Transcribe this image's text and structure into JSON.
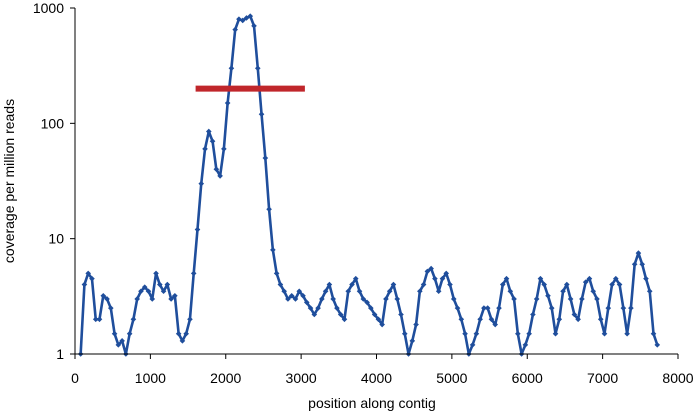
{
  "chart_data": {
    "type": "line",
    "title": "",
    "xlabel": "position along contig",
    "ylabel": "coverage per million reads",
    "xlim": [
      0,
      8000
    ],
    "ylim": [
      1,
      1000
    ],
    "y_scale": "log",
    "x_ticks": [
      "0",
      "1000",
      "2000",
      "3000",
      "4000",
      "5000",
      "6000",
      "7000",
      "8000"
    ],
    "y_ticks": [
      "1",
      "10",
      "100",
      "1000"
    ],
    "grid": false,
    "legend": "none",
    "series": [
      {
        "color": "#1f4e9c",
        "marker": "diamond",
        "x": [
          75,
          125,
          175,
          225,
          275,
          325,
          375,
          425,
          475,
          525,
          575,
          625,
          675,
          725,
          775,
          825,
          875,
          925,
          975,
          1025,
          1075,
          1125,
          1175,
          1225,
          1275,
          1325,
          1375,
          1425,
          1475,
          1525,
          1575,
          1625,
          1675,
          1725,
          1775,
          1825,
          1875,
          1925,
          1975,
          2025,
          2075,
          2125,
          2175,
          2225,
          2275,
          2325,
          2375,
          2425,
          2475,
          2525,
          2575,
          2625,
          2675,
          2725,
          2775,
          2825,
          2875,
          2925,
          2975,
          3025,
          3075,
          3125,
          3175,
          3225,
          3275,
          3325,
          3375,
          3425,
          3475,
          3525,
          3575,
          3625,
          3675,
          3725,
          3775,
          3825,
          3875,
          3925,
          3975,
          4025,
          4075,
          4125,
          4175,
          4225,
          4275,
          4325,
          4375,
          4425,
          4475,
          4525,
          4575,
          4625,
          4675,
          4725,
          4775,
          4825,
          4875,
          4925,
          4975,
          5025,
          5075,
          5125,
          5175,
          5225,
          5275,
          5325,
          5375,
          5425,
          5475,
          5525,
          5575,
          5625,
          5675,
          5725,
          5775,
          5825,
          5875,
          5925,
          5975,
          6025,
          6075,
          6125,
          6175,
          6225,
          6275,
          6325,
          6375,
          6425,
          6475,
          6525,
          6575,
          6625,
          6675,
          6725,
          6775,
          6825,
          6875,
          6925,
          6975,
          7025,
          7075,
          7125,
          7175,
          7225,
          7275,
          7325,
          7375,
          7425,
          7475,
          7525,
          7575,
          7625,
          7675,
          7725
        ],
        "y": [
          1,
          4,
          5,
          4.5,
          2,
          2,
          3.2,
          3,
          2.5,
          1.5,
          1.2,
          1.3,
          1,
          1.5,
          2,
          3,
          3.5,
          3.8,
          3.5,
          3,
          5,
          4,
          3.5,
          4,
          3,
          3.2,
          1.5,
          1.3,
          1.5,
          2,
          5,
          12,
          30,
          60,
          85,
          70,
          40,
          35,
          60,
          150,
          300,
          650,
          800,
          780,
          820,
          850,
          700,
          300,
          120,
          50,
          18,
          8,
          5,
          4,
          3.5,
          3,
          3.2,
          3,
          3.5,
          3.2,
          2.8,
          2.5,
          2.2,
          2.5,
          3,
          3.5,
          4,
          3,
          2.5,
          2.2,
          2,
          3.5,
          4,
          4.5,
          3.5,
          3,
          2.8,
          2.5,
          2.2,
          2,
          1.8,
          3,
          3.5,
          4,
          3,
          2.2,
          1.5,
          1,
          1.3,
          1.8,
          3.5,
          4,
          5.2,
          5.5,
          4.5,
          3.5,
          4.5,
          5,
          4,
          3,
          2.5,
          2,
          1.5,
          1,
          1.2,
          1.5,
          2,
          2.5,
          2.5,
          2,
          1.8,
          2.5,
          4,
          4.5,
          3.5,
          3,
          1.5,
          1,
          1.2,
          1.5,
          2.2,
          3,
          4.5,
          4,
          3.2,
          2.5,
          1.5,
          2,
          3.5,
          4,
          3,
          2.2,
          2,
          3,
          4.2,
          4.5,
          3.5,
          3,
          2,
          1.5,
          2.5,
          4,
          4.5,
          4,
          2.5,
          1.5,
          2.5,
          6,
          7.5,
          6,
          4.5,
          3.5,
          1.5,
          1.2
        ]
      },
      {
        "color": "#c0262b",
        "x": [
          1600,
          3050
        ],
        "y": [
          200,
          200
        ]
      }
    ]
  }
}
